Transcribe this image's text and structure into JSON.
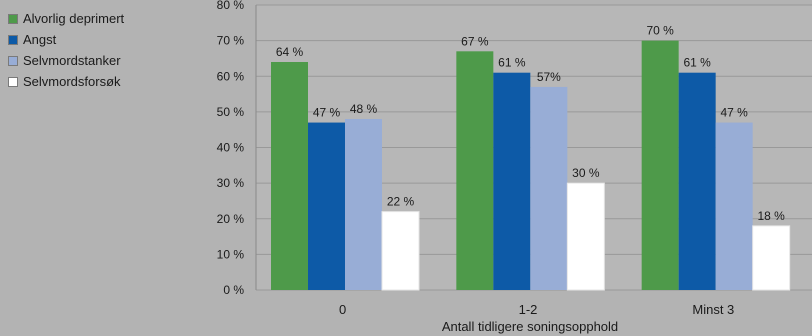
{
  "chart_data": {
    "type": "bar",
    "title": "",
    "xlabel": "Antall tidligere soningsopphold",
    "ylabel": "",
    "ylim": [
      0,
      80
    ],
    "yticks": [
      0,
      10,
      20,
      30,
      40,
      50,
      60,
      70,
      80
    ],
    "ytick_suffix": " %",
    "grid": true,
    "legend_position": "left",
    "categories": [
      "0",
      "1-2",
      "Minst 3"
    ],
    "series": [
      {
        "name": "Alvorlig deprimert",
        "color": "#4e9a4a",
        "values": [
          64,
          67,
          70
        ],
        "labels": [
          "64 %",
          "67 %",
          "70 %"
        ]
      },
      {
        "name": "Angst",
        "color": "#0d5aa7",
        "values": [
          47,
          61,
          61
        ],
        "labels": [
          "47 %",
          "61 %",
          "61 %"
        ]
      },
      {
        "name": "Selvmordstanker",
        "color": "#98add6",
        "values": [
          48,
          57,
          47
        ],
        "labels": [
          "48 %",
          "57%",
          "47 %"
        ]
      },
      {
        "name": "Selvmordsforsøk",
        "color": "#ffffff",
        "values": [
          22,
          30,
          18
        ],
        "labels": [
          "22 %",
          "30 %",
          "18 %"
        ]
      }
    ]
  }
}
